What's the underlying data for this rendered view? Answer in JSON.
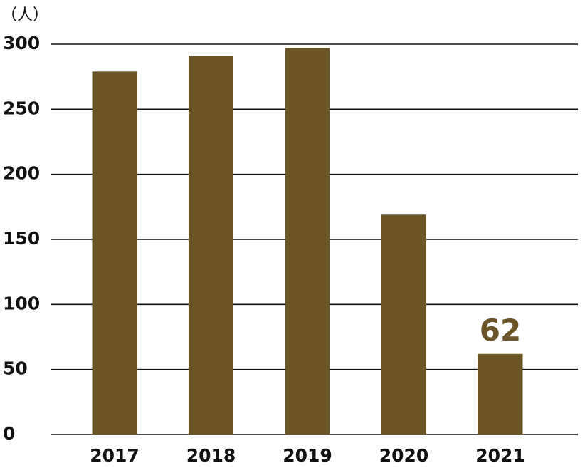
{
  "chart_data": {
    "type": "bar",
    "y_unit_label": "（人）",
    "categories": [
      "2017",
      "2018",
      "2019",
      "2020",
      "2021"
    ],
    "values": [
      279,
      291,
      297,
      169,
      62
    ],
    "value_labels": [
      null,
      null,
      null,
      null,
      "62"
    ],
    "color": "#6b5428",
    "ylim": [
      0,
      300
    ],
    "yticks": [
      0,
      50,
      100,
      150,
      200,
      250,
      300
    ],
    "grid": true
  }
}
